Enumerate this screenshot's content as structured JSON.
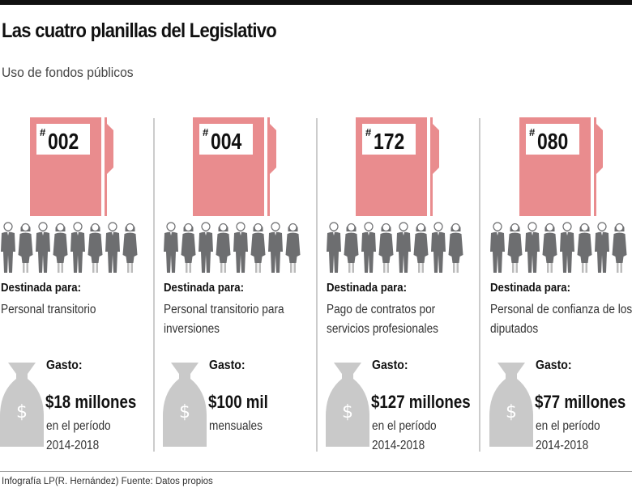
{
  "title": "Las cuatro planillas del Legislativo",
  "subtitle": "Uso de fondos públicos",
  "colors": {
    "folder": "#e98c8e",
    "figure": "#6d6e70",
    "bag": "#c9c9c9"
  },
  "columns": [
    {
      "hash": "#",
      "number": "002",
      "dest_label": "Destinada para:",
      "description": "Personal transitorio",
      "gasto_label": "Gasto:",
      "amount": "$18 millones",
      "period_1": "en el período",
      "period_2": "2014-2018"
    },
    {
      "hash": "#",
      "number": "004",
      "dest_label": "Destinada para:",
      "description": "Personal transitorio para inversiones",
      "gasto_label": "Gasto:",
      "amount": "$100 mil",
      "period_1": "mensuales",
      "period_2": ""
    },
    {
      "hash": "#",
      "number": "172",
      "dest_label": "Destinada para:",
      "description": "Pago de contratos por servicios profesionales",
      "gasto_label": "Gasto:",
      "amount": "$127 millones",
      "period_1": "en el período",
      "period_2": "2014-2018"
    },
    {
      "hash": "#",
      "number": "080",
      "dest_label": "Destinada para:",
      "description": "Personal de confianza de los diputados",
      "gasto_label": "Gasto:",
      "amount": "$77 millones",
      "period_1": "en el período",
      "period_2": "2014-2018"
    }
  ],
  "footer": "Infografía LP(R. Hernández) Fuente: Datos propios"
}
